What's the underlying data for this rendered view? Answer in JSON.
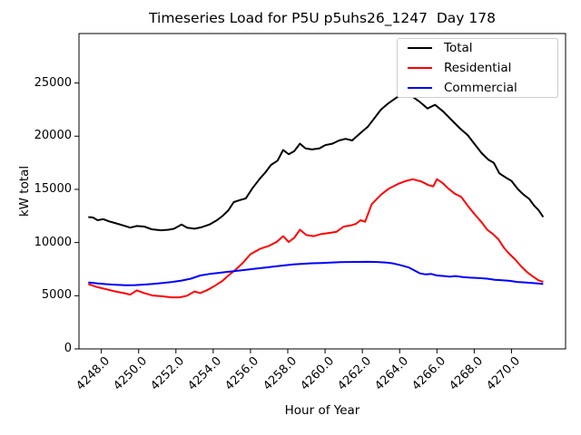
{
  "figure": {
    "title": "Timeseries Load for P5U p5uhs26_1247  Day 178",
    "xlabel": "Hour of Year",
    "ylabel": "kW total"
  },
  "legend": {
    "entries": [
      {
        "label": "Total",
        "color": "#000000"
      },
      {
        "label": "Residential",
        "color": "#ff0000"
      },
      {
        "label": "Commercial",
        "color": "#0000ff"
      }
    ]
  },
  "chart_data": {
    "type": "line",
    "title": "Timeseries Load for P5U p5uhs26_1247  Day 178",
    "xlabel": "Hour of Year",
    "ylabel": "kW total",
    "xlim": [
      4246.8,
      4272.9
    ],
    "ylim": [
      0,
      29650
    ],
    "grid": false,
    "legend_position": "upper right",
    "x_tick_values": [
      4248,
      4250,
      4252,
      4254,
      4256,
      4258,
      4260,
      4262,
      4264,
      4266,
      4268,
      4270
    ],
    "x_tick_labels": [
      "4248.0",
      "4250.0",
      "4252.0",
      "4254.0",
      "4256.0",
      "4258.0",
      "4260.0",
      "4262.0",
      "4264.0",
      "4266.0",
      "4268.0",
      "4270.0"
    ],
    "y_tick_values": [
      0,
      5000,
      10000,
      15000,
      20000,
      25000
    ],
    "y_tick_labels": [
      "0",
      "5000",
      "10000",
      "15000",
      "20000",
      "25000"
    ],
    "series": [
      {
        "name": "Total",
        "color": "#000000",
        "points": [
          [
            4247.3,
            12400
          ],
          [
            4247.55,
            12350
          ],
          [
            4247.8,
            12100
          ],
          [
            4248.1,
            12200
          ],
          [
            4248.4,
            12000
          ],
          [
            4248.8,
            11800
          ],
          [
            4249.2,
            11600
          ],
          [
            4249.55,
            11400
          ],
          [
            4249.9,
            11550
          ],
          [
            4250.3,
            11500
          ],
          [
            4250.7,
            11250
          ],
          [
            4251.2,
            11150
          ],
          [
            4251.6,
            11200
          ],
          [
            4251.9,
            11300
          ],
          [
            4252.3,
            11700
          ],
          [
            4252.6,
            11400
          ],
          [
            4253.0,
            11300
          ],
          [
            4253.4,
            11450
          ],
          [
            4253.8,
            11700
          ],
          [
            4254.2,
            12100
          ],
          [
            4254.5,
            12500
          ],
          [
            4254.8,
            13000
          ],
          [
            4255.1,
            13800
          ],
          [
            4255.45,
            14000
          ],
          [
            4255.75,
            14150
          ],
          [
            4256.1,
            15100
          ],
          [
            4256.5,
            16000
          ],
          [
            4256.8,
            16600
          ],
          [
            4257.1,
            17300
          ],
          [
            4257.45,
            17700
          ],
          [
            4257.75,
            18700
          ],
          [
            4258.05,
            18300
          ],
          [
            4258.35,
            18600
          ],
          [
            4258.65,
            19300
          ],
          [
            4258.95,
            18850
          ],
          [
            4259.3,
            18750
          ],
          [
            4259.7,
            18850
          ],
          [
            4260.0,
            19150
          ],
          [
            4260.4,
            19300
          ],
          [
            4260.75,
            19600
          ],
          [
            4261.1,
            19750
          ],
          [
            4261.45,
            19600
          ],
          [
            4261.9,
            20300
          ],
          [
            4262.3,
            20900
          ],
          [
            4262.65,
            21700
          ],
          [
            4263.0,
            22500
          ],
          [
            4263.4,
            23100
          ],
          [
            4263.85,
            23650
          ],
          [
            4264.3,
            23870
          ],
          [
            4264.7,
            23700
          ],
          [
            4265.1,
            23200
          ],
          [
            4265.5,
            22600
          ],
          [
            4265.9,
            22950
          ],
          [
            4266.35,
            22300
          ],
          [
            4266.8,
            21500
          ],
          [
            4267.25,
            20700
          ],
          [
            4267.65,
            20100
          ],
          [
            4268.0,
            19300
          ],
          [
            4268.4,
            18400
          ],
          [
            4268.75,
            17800
          ],
          [
            4269.05,
            17500
          ],
          [
            4269.35,
            16500
          ],
          [
            4269.7,
            16100
          ],
          [
            4270.0,
            15800
          ],
          [
            4270.35,
            15000
          ],
          [
            4270.65,
            14500
          ],
          [
            4270.95,
            14100
          ],
          [
            4271.2,
            13500
          ],
          [
            4271.45,
            13050
          ],
          [
            4271.7,
            12400
          ]
        ]
      },
      {
        "name": "Residential",
        "color": "#ff0000",
        "points": [
          [
            4247.3,
            6100
          ],
          [
            4247.8,
            5800
          ],
          [
            4248.3,
            5600
          ],
          [
            4248.75,
            5400
          ],
          [
            4249.2,
            5250
          ],
          [
            4249.55,
            5100
          ],
          [
            4249.9,
            5500
          ],
          [
            4250.3,
            5250
          ],
          [
            4250.75,
            5020
          ],
          [
            4251.25,
            4950
          ],
          [
            4251.75,
            4850
          ],
          [
            4252.2,
            4850
          ],
          [
            4252.6,
            5000
          ],
          [
            4253.0,
            5400
          ],
          [
            4253.3,
            5250
          ],
          [
            4253.7,
            5550
          ],
          [
            4254.1,
            5950
          ],
          [
            4254.5,
            6400
          ],
          [
            4254.85,
            6950
          ],
          [
            4255.2,
            7450
          ],
          [
            4255.6,
            8100
          ],
          [
            4256.0,
            8900
          ],
          [
            4256.5,
            9400
          ],
          [
            4257.0,
            9700
          ],
          [
            4257.4,
            10050
          ],
          [
            4257.75,
            10600
          ],
          [
            4258.05,
            10050
          ],
          [
            4258.35,
            10450
          ],
          [
            4258.65,
            11200
          ],
          [
            4259.0,
            10700
          ],
          [
            4259.4,
            10600
          ],
          [
            4259.8,
            10800
          ],
          [
            4260.2,
            10900
          ],
          [
            4260.6,
            11000
          ],
          [
            4261.0,
            11500
          ],
          [
            4261.35,
            11600
          ],
          [
            4261.65,
            11750
          ],
          [
            4261.9,
            12100
          ],
          [
            4262.15,
            11950
          ],
          [
            4262.5,
            13600
          ],
          [
            4263.0,
            14500
          ],
          [
            4263.4,
            15050
          ],
          [
            4263.9,
            15500
          ],
          [
            4264.35,
            15800
          ],
          [
            4264.7,
            15950
          ],
          [
            4265.15,
            15750
          ],
          [
            4265.55,
            15400
          ],
          [
            4265.8,
            15280
          ],
          [
            4266.0,
            15960
          ],
          [
            4266.3,
            15600
          ],
          [
            4266.6,
            15100
          ],
          [
            4266.95,
            14600
          ],
          [
            4267.3,
            14300
          ],
          [
            4267.7,
            13350
          ],
          [
            4268.05,
            12600
          ],
          [
            4268.4,
            11900
          ],
          [
            4268.7,
            11200
          ],
          [
            4269.0,
            10800
          ],
          [
            4269.3,
            10300
          ],
          [
            4269.6,
            9500
          ],
          [
            4269.9,
            8900
          ],
          [
            4270.2,
            8400
          ],
          [
            4270.5,
            7800
          ],
          [
            4270.85,
            7200
          ],
          [
            4271.15,
            6800
          ],
          [
            4271.45,
            6450
          ],
          [
            4271.7,
            6300
          ]
        ]
      },
      {
        "name": "Commercial",
        "color": "#0000ff",
        "points": [
          [
            4247.3,
            6250
          ],
          [
            4247.8,
            6150
          ],
          [
            4248.3,
            6080
          ],
          [
            4248.8,
            6020
          ],
          [
            4249.3,
            5990
          ],
          [
            4249.8,
            6000
          ],
          [
            4250.3,
            6050
          ],
          [
            4250.8,
            6120
          ],
          [
            4251.3,
            6200
          ],
          [
            4251.8,
            6300
          ],
          [
            4252.3,
            6420
          ],
          [
            4252.8,
            6600
          ],
          [
            4253.3,
            6900
          ],
          [
            4253.8,
            7050
          ],
          [
            4254.3,
            7150
          ],
          [
            4254.8,
            7250
          ],
          [
            4255.3,
            7350
          ],
          [
            4255.8,
            7450
          ],
          [
            4256.3,
            7550
          ],
          [
            4256.8,
            7650
          ],
          [
            4257.3,
            7750
          ],
          [
            4257.8,
            7850
          ],
          [
            4258.3,
            7950
          ],
          [
            4258.8,
            8000
          ],
          [
            4259.3,
            8050
          ],
          [
            4259.8,
            8080
          ],
          [
            4260.3,
            8120
          ],
          [
            4260.8,
            8150
          ],
          [
            4261.3,
            8170
          ],
          [
            4261.8,
            8180
          ],
          [
            4262.3,
            8190
          ],
          [
            4262.8,
            8170
          ],
          [
            4263.3,
            8120
          ],
          [
            4263.6,
            8050
          ],
          [
            4264.0,
            7900
          ],
          [
            4264.5,
            7650
          ],
          [
            4265.1,
            7100
          ],
          [
            4265.4,
            7000
          ],
          [
            4265.7,
            7050
          ],
          [
            4266.0,
            6900
          ],
          [
            4266.4,
            6850
          ],
          [
            4266.7,
            6800
          ],
          [
            4267.0,
            6850
          ],
          [
            4267.4,
            6750
          ],
          [
            4267.8,
            6700
          ],
          [
            4268.3,
            6650
          ],
          [
            4268.7,
            6600
          ],
          [
            4269.1,
            6500
          ],
          [
            4269.5,
            6450
          ],
          [
            4269.9,
            6400
          ],
          [
            4270.3,
            6300
          ],
          [
            4270.7,
            6250
          ],
          [
            4271.1,
            6200
          ],
          [
            4271.4,
            6150
          ],
          [
            4271.7,
            6100
          ]
        ]
      }
    ]
  }
}
